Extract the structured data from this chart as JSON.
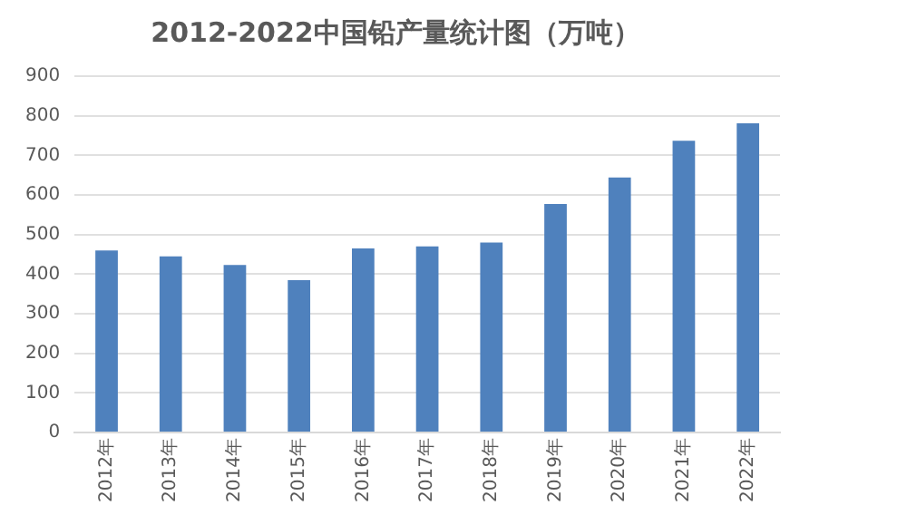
{
  "chart_data": {
    "type": "bar",
    "title": "2012-2022中国铅产量统计图（万吨）",
    "categories": [
      "2012年",
      "2013年",
      "2014年",
      "2015年",
      "2016年",
      "2017年",
      "2018年",
      "2019年",
      "2020年",
      "2021年",
      "2022年"
    ],
    "values": [
      460,
      445,
      423,
      385,
      465,
      470,
      480,
      577,
      644,
      737,
      781
    ],
    "color": "#4f81bd",
    "ylim": [
      0,
      900
    ],
    "yticks": [
      0,
      100,
      200,
      300,
      400,
      500,
      600,
      700,
      800,
      900
    ],
    "grid": "y"
  }
}
